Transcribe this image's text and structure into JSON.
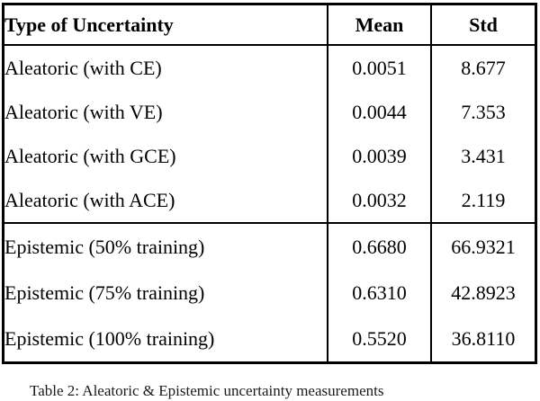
{
  "table": {
    "headers": {
      "type": "Type of Uncertainty",
      "mean": "Mean",
      "std": "Std"
    },
    "rows": [
      {
        "type": "Aleatoric (with CE)",
        "mean": "0.0051",
        "std": "8.677"
      },
      {
        "type": "Aleatoric (with VE)",
        "mean": "0.0044",
        "std": "7.353"
      },
      {
        "type": "Aleatoric (with GCE)",
        "mean": "0.0039",
        "std": "3.431"
      },
      {
        "type": "Aleatoric (with ACE)",
        "mean": "0.0032",
        "std": "2.119"
      },
      {
        "type": "Epistemic (50% training)",
        "mean": "0.6680",
        "std": "66.9321"
      },
      {
        "type": "Epistemic (75% training)",
        "mean": "0.6310",
        "std": "42.8923"
      },
      {
        "type": "Epistemic (100% training)",
        "mean": "0.5520",
        "std": "36.8110"
      }
    ]
  },
  "caption": "Table 2:  Aleatoric & Epistemic uncertainty measurements",
  "colors": {
    "border": "#000000",
    "text": "#000000",
    "background": "#ffffff"
  }
}
